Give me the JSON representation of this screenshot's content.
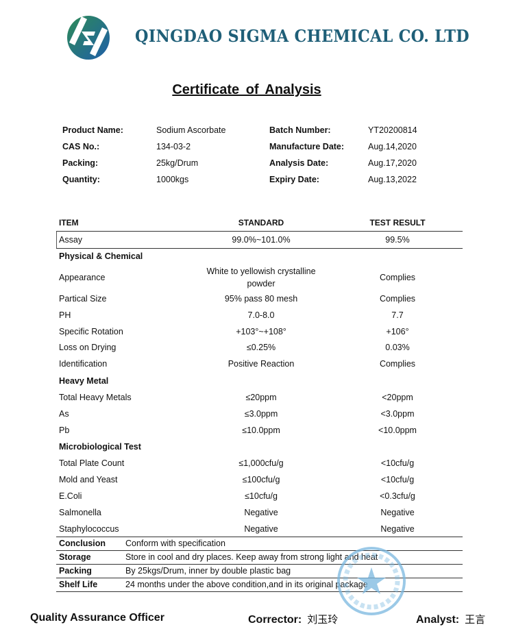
{
  "header": {
    "company_name": "QINGDAO SIGMA CHEMICAL CO. LTD",
    "logo": "sigma-s-logo",
    "logo_colors": [
      "#2e8b57",
      "#1f5fa8"
    ]
  },
  "title": "Certificate  of  Analysis",
  "info": {
    "left": [
      {
        "label": "Product Name:",
        "value": "Sodium Ascorbate"
      },
      {
        "label": "CAS No.:",
        "value": "134-03-2"
      },
      {
        "label": "Packing:",
        "value": "25kg/Drum"
      },
      {
        "label": "Quantity:",
        "value": "1000kgs"
      }
    ],
    "right": [
      {
        "label": "Batch Number:",
        "value": "YT20200814"
      },
      {
        "label": "Manufacture Date:",
        "value": "Aug.14,2020"
      },
      {
        "label": "Analysis Date:",
        "value": "Aug.17,2020"
      },
      {
        "label": "Expiry Date:",
        "value": "Aug.13,2022"
      }
    ]
  },
  "table": {
    "columns": [
      "ITEM",
      "STANDARD",
      "TEST RESULT"
    ],
    "rows": [
      {
        "item": "Assay",
        "standard": "99.0%~101.0%",
        "result": "99.5%"
      },
      {
        "section": "Physical & Chemical"
      },
      {
        "item": "Appearance",
        "standard": "White to yellowish crystalline powder",
        "result": "Complies"
      },
      {
        "item": "Partical Size",
        "standard": "95% pass 80 mesh",
        "result": "Complies"
      },
      {
        "item": "PH",
        "standard": "7.0-8.0",
        "result": "7.7"
      },
      {
        "item": "Specific Rotation",
        "standard": "+103°~+108°",
        "result": "+106°"
      },
      {
        "item": "Loss on Drying",
        "standard": "≤0.25%",
        "result": "0.03%"
      },
      {
        "item": "Identification",
        "standard": "Positive Reaction",
        "result": "Complies"
      },
      {
        "section": "Heavy Metal"
      },
      {
        "item": "Total Heavy Metals",
        "standard": "≤20ppm",
        "result": "<20ppm"
      },
      {
        "item": "As",
        "standard": "≤3.0ppm",
        "result": "<3.0ppm"
      },
      {
        "item": "Pb",
        "standard": "≤10.0ppm",
        "result": "<10.0ppm"
      },
      {
        "section": "Microbiological Test"
      },
      {
        "item": "Total Plate Count",
        "standard": "≤1,000cfu/g",
        "result": "<10cfu/g"
      },
      {
        "item": "Mold and Yeast",
        "standard": "≤100cfu/g",
        "result": "<10cfu/g"
      },
      {
        "item": "E.Coli",
        "standard": "≤10cfu/g",
        "result": "<0.3cfu/g"
      },
      {
        "item": "Salmonella",
        "standard": "Negative",
        "result": "Negative"
      },
      {
        "item": "Staphylococcus",
        "standard": "Negative",
        "result": "Negative"
      }
    ]
  },
  "footer_rows": [
    {
      "label": "Conclusion",
      "value": "Conform with specification"
    },
    {
      "label": "Storage",
      "value": "Store in cool and dry places. Keep away from strong light and heat"
    },
    {
      "label": "Packing",
      "value": "By 25kgs/Drum, inner by double plastic bag"
    },
    {
      "label": "Shelf Life",
      "value": "24 months under the above condition,and in its original package"
    }
  ],
  "signatures": {
    "qa": "Quality Assurance Officer",
    "corrector_label": "Corrector:",
    "corrector_name": "刘玉玲",
    "analyst_label": "Analyst:",
    "analyst_name": "王言"
  },
  "stamp": {
    "text": "青岛西格玛化工有限公司 质检专用章",
    "color": "#7ab8e0",
    "icon": "star-icon"
  }
}
